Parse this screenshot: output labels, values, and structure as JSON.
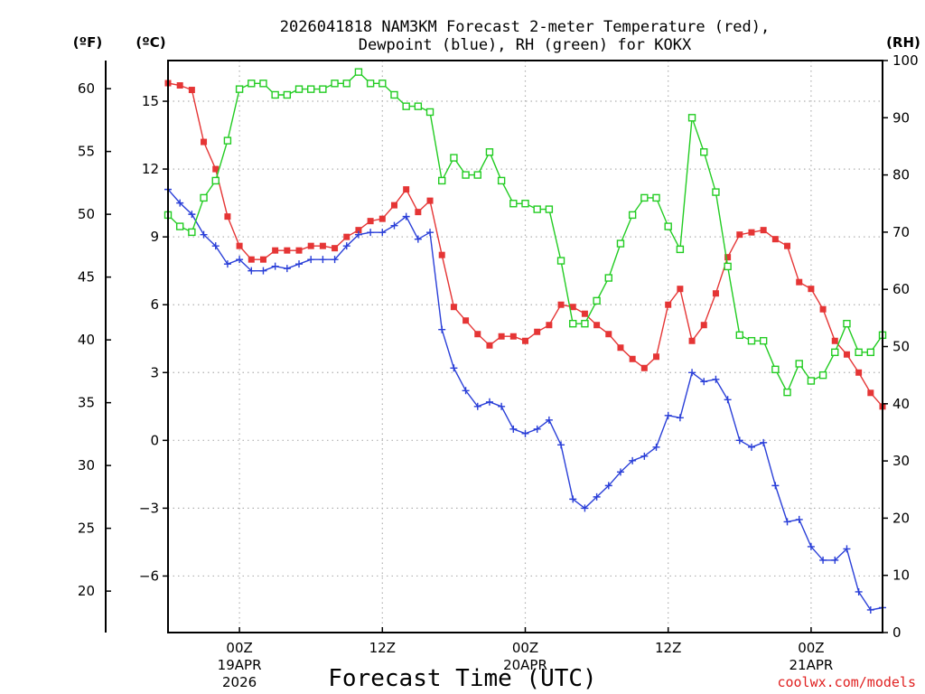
{
  "chart_data": {
    "type": "line",
    "title_line1": "2026041818 NAM3KM Forecast 2-meter Temperature (red),",
    "title_line2": "Dewpoint (blue), RH (green) for KOKX",
    "xlabel": "Forecast Time (UTC)",
    "credit": "coolwx.com/models",
    "axis_headers": {
      "f": "(ºF)",
      "c": "(ºC)",
      "rh": "(RH)"
    },
    "x_range_hours": [
      -6,
      54
    ],
    "c_range": [
      -8.5,
      16.8
    ],
    "rh_range": [
      0,
      100
    ],
    "x_ticks": [
      {
        "h": 0,
        "l1": "00Z",
        "l2": "19APR",
        "l3": "2026"
      },
      {
        "h": 12,
        "l1": "12Z",
        "l2": "",
        "l3": ""
      },
      {
        "h": 24,
        "l1": "00Z",
        "l2": "20APR",
        "l3": ""
      },
      {
        "h": 36,
        "l1": "12Z",
        "l2": "",
        "l3": ""
      },
      {
        "h": 48,
        "l1": "00Z",
        "l2": "21APR",
        "l3": ""
      }
    ],
    "c_ticks": [
      {
        "v": 15,
        "label": "15"
      },
      {
        "v": 12,
        "label": "12"
      },
      {
        "v": 9,
        "label": "9"
      },
      {
        "v": 6,
        "label": "6"
      },
      {
        "v": 3,
        "label": "3"
      },
      {
        "v": 0,
        "label": "0"
      },
      {
        "v": -3,
        "label": "−3"
      },
      {
        "v": -6,
        "label": "−6"
      }
    ],
    "f_ticks": [
      {
        "v": 60,
        "label": "60"
      },
      {
        "v": 55,
        "label": "55"
      },
      {
        "v": 50,
        "label": "50"
      },
      {
        "v": 45,
        "label": "45"
      },
      {
        "v": 40,
        "label": "40"
      },
      {
        "v": 35,
        "label": "35"
      },
      {
        "v": 30,
        "label": "30"
      },
      {
        "v": 25,
        "label": "25"
      },
      {
        "v": 20,
        "label": "20"
      }
    ],
    "rh_ticks": [
      {
        "v": 100,
        "label": "100"
      },
      {
        "v": 90,
        "label": "90"
      },
      {
        "v": 80,
        "label": "80"
      },
      {
        "v": 70,
        "label": "70"
      },
      {
        "v": 60,
        "label": "60"
      },
      {
        "v": 50,
        "label": "50"
      },
      {
        "v": 40,
        "label": "40"
      },
      {
        "v": 30,
        "label": "30"
      },
      {
        "v": 20,
        "label": "20"
      },
      {
        "v": 10,
        "label": "10"
      },
      {
        "v": 0,
        "label": "0"
      }
    ],
    "x_start_hour": -6,
    "x_step_hours": 1,
    "series": [
      {
        "name": "2-meter Temperature",
        "axis": "C",
        "color": "#e53535",
        "marker": "filled-square",
        "values": [
          15.8,
          15.7,
          15.5,
          13.2,
          12.0,
          9.9,
          8.6,
          8.0,
          8.0,
          8.4,
          8.4,
          8.4,
          8.6,
          8.6,
          8.5,
          9.0,
          9.3,
          9.7,
          9.8,
          10.4,
          11.1,
          10.1,
          10.6,
          8.2,
          5.9,
          5.3,
          4.7,
          4.2,
          4.6,
          4.6,
          4.4,
          4.8,
          5.1,
          6.0,
          5.9,
          5.6,
          5.1,
          4.7,
          4.1,
          3.6,
          3.2,
          3.7,
          6.0,
          6.7,
          4.4,
          5.1,
          6.5,
          8.1,
          9.1,
          9.2,
          9.3,
          8.9,
          8.6,
          7.0,
          6.7,
          5.8,
          4.4,
          3.8,
          3.0,
          2.1,
          1.5
        ]
      },
      {
        "name": "Dewpoint",
        "axis": "C",
        "color": "#2a3fd8",
        "marker": "plus",
        "values": [
          11.1,
          10.5,
          10.0,
          9.1,
          8.6,
          7.8,
          8.0,
          7.5,
          7.5,
          7.7,
          7.6,
          7.8,
          8.0,
          8.0,
          8.0,
          8.6,
          9.1,
          9.2,
          9.2,
          9.5,
          9.9,
          8.9,
          9.2,
          4.9,
          3.2,
          2.2,
          1.5,
          1.7,
          1.5,
          0.5,
          0.3,
          0.5,
          0.9,
          -0.2,
          -2.6,
          -3.0,
          -2.5,
          -2.0,
          -1.4,
          -0.9,
          -0.7,
          -0.3,
          1.1,
          1.0,
          3.0,
          2.6,
          2.7,
          1.8,
          0.0,
          -0.3,
          -0.1,
          -2.0,
          -3.6,
          -3.5,
          -4.7,
          -5.3,
          -5.3,
          -4.8,
          -6.7,
          -7.5,
          -7.4
        ]
      },
      {
        "name": "RH",
        "axis": "RH",
        "color": "#22cc22",
        "marker": "open-square",
        "values": [
          73,
          71,
          70,
          76,
          79,
          86,
          95,
          96,
          96,
          94,
          94,
          95,
          95,
          95,
          96,
          96,
          98,
          96,
          96,
          94,
          92,
          92,
          91,
          79,
          83,
          80,
          80,
          84,
          79,
          75,
          75,
          74,
          74,
          65,
          54,
          54,
          58,
          62,
          68,
          73,
          76,
          76,
          71,
          67,
          90,
          84,
          77,
          64,
          52,
          51,
          51,
          46,
          42,
          47,
          44,
          45,
          49,
          54,
          49,
          49,
          52
        ]
      }
    ]
  }
}
